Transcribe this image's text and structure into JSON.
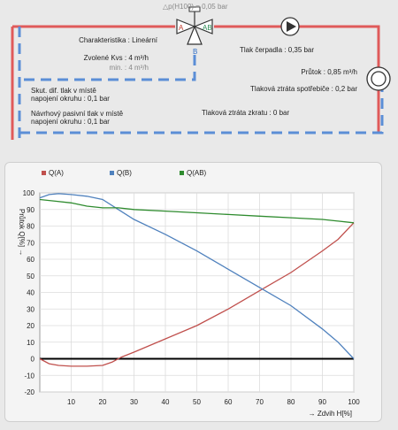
{
  "scheme": {
    "valve_dp_label": "△p(H100) = 0,05 bar",
    "port_a": "A",
    "port_ab": "AB",
    "port_b": "B",
    "characteristic": "Charakteristika : Lineární",
    "kvs": "Zvolené Kvs : 4 m³/h",
    "kvs_min": "min. : 4 m³/h",
    "pump_head": "Tlak čerpadla : 0,35 bar",
    "flow": "Průtok : 0,85 m³/h",
    "consumer_loss": "Tlaková ztráta spotřebiče : 0,2 bar",
    "bypass_loss": "Tlaková ztráta zkratu : 0 bar",
    "actual_dp_line1": "Skut. dif. tlak v místě",
    "actual_dp_line2": "napojení okruhu : 0,1 bar",
    "design_dp_line1": "Návrhový pasivní tlak v místě",
    "design_dp_line2": "napojení okruhu : 0,1 bar",
    "colors": {
      "supply": "#e05a5a",
      "return": "#5b8ed6",
      "valve_a": "#c0392b",
      "valve_ab": "#2e8b57",
      "valve_b": "#2f6fc7"
    }
  },
  "chart_data": {
    "type": "line",
    "xlabel": "Zdvih H[%]",
    "ylabel": "Průtok Q[%]",
    "xlim": [
      0,
      100
    ],
    "ylim": [
      -20,
      100
    ],
    "xticks": [
      10,
      20,
      30,
      40,
      50,
      60,
      70,
      80,
      90,
      100
    ],
    "yticks": [
      100,
      90,
      80,
      70,
      60,
      50,
      40,
      30,
      20,
      10,
      0,
      -10,
      -20
    ],
    "grid": true,
    "legend_position": "top",
    "series": [
      {
        "name": "Q(A)",
        "color": "#c0504d",
        "x": [
          0,
          3,
          6,
          10,
          15,
          20,
          23,
          26,
          30,
          40,
          50,
          60,
          70,
          80,
          90,
          95,
          100
        ],
        "y": [
          0,
          -3,
          -4,
          -4.5,
          -4.5,
          -4,
          -2,
          1,
          4,
          12,
          20,
          30,
          41,
          52,
          65,
          72,
          82
        ]
      },
      {
        "name": "Q(B)",
        "color": "#4f81bd",
        "x": [
          0,
          3,
          6,
          10,
          15,
          20,
          25,
          30,
          40,
          50,
          60,
          70,
          80,
          90,
          95,
          100
        ],
        "y": [
          97,
          99,
          99.5,
          99,
          98,
          96,
          90,
          84,
          75,
          65,
          54,
          43,
          32,
          18,
          10,
          0
        ]
      },
      {
        "name": "Q(AB)",
        "color": "#2e8b2e",
        "x": [
          0,
          5,
          10,
          15,
          20,
          25,
          30,
          40,
          50,
          60,
          70,
          80,
          90,
          95,
          100
        ],
        "y": [
          96,
          95,
          94,
          92,
          91,
          91,
          90,
          89,
          88,
          87,
          86,
          85,
          84,
          83,
          82
        ]
      }
    ]
  }
}
